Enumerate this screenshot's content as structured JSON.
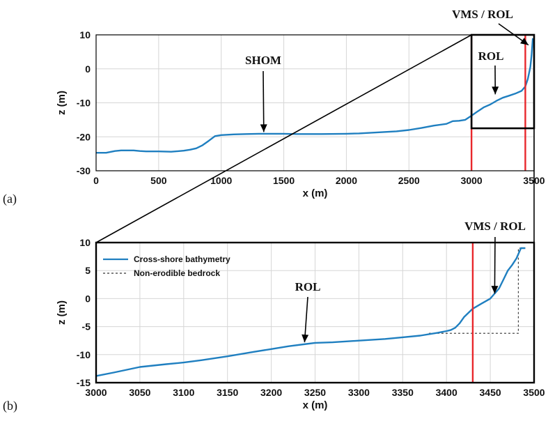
{
  "chart_data": [
    {
      "panel_label": "(a)",
      "type": "line",
      "xlabel": "x (m)",
      "ylabel": "z (m)",
      "xlim": [
        0,
        3500
      ],
      "ylim": [
        -30,
        10
      ],
      "xticks": [
        0,
        500,
        1000,
        1500,
        2000,
        2500,
        3000,
        3500
      ],
      "yticks": [
        -30,
        -20,
        -10,
        0,
        10
      ],
      "grid": true,
      "colors": {
        "series": "#1f7fc0",
        "markers": "#e8272b"
      },
      "series": [
        {
          "x": [
            0,
            80,
            150,
            200,
            300,
            350,
            400,
            500,
            600,
            700,
            750,
            800,
            850,
            900,
            950,
            1000,
            1100,
            1200,
            1300,
            1400,
            1500,
            1600,
            1800,
            2000,
            2100,
            2200,
            2300,
            2400,
            2500,
            2600,
            2700,
            2800,
            2850,
            2900,
            2950,
            3000,
            3050,
            3100,
            3150,
            3200,
            3250,
            3300,
            3350,
            3400,
            3430,
            3450,
            3470,
            3480,
            3490
          ],
          "y": [
            -24.7,
            -24.7,
            -24.2,
            -24.0,
            -24.0,
            -24.2,
            -24.3,
            -24.3,
            -24.4,
            -24.1,
            -23.8,
            -23.4,
            -22.5,
            -21.2,
            -19.8,
            -19.5,
            -19.3,
            -19.2,
            -19.1,
            -19.1,
            -19.1,
            -19.2,
            -19.2,
            -19.1,
            -19.0,
            -18.8,
            -18.6,
            -18.4,
            -18.0,
            -17.4,
            -16.7,
            -16.2,
            -15.4,
            -15.3,
            -15.0,
            -13.8,
            -12.5,
            -11.3,
            -10.5,
            -9.4,
            -8.5,
            -7.9,
            -7.3,
            -6.5,
            -5.2,
            -3.0,
            0.5,
            4.0,
            9.0
          ]
        }
      ],
      "vlines": [
        3000,
        3430
      ],
      "zoom_box": {
        "x": [
          3000,
          3500
        ],
        "y": [
          -17.5,
          10
        ]
      },
      "annotations": [
        {
          "text": "SHOM",
          "x": 1340,
          "y": -18.6
        },
        {
          "text": "ROL",
          "x": 3190,
          "y": -7.5
        },
        {
          "text": "VMS / ROL",
          "x": 3455,
          "y": 7.0
        }
      ]
    },
    {
      "panel_label": "(b)",
      "type": "line",
      "xlabel": "x (m)",
      "ylabel": "z (m)",
      "xlim": [
        3000,
        3500
      ],
      "ylim": [
        -15,
        10
      ],
      "xticks": [
        3000,
        3050,
        3100,
        3150,
        3200,
        3250,
        3300,
        3350,
        3400,
        3450,
        3500
      ],
      "yticks": [
        -15,
        -10,
        -5,
        0,
        5,
        10
      ],
      "grid": true,
      "legend_placement": "top-left",
      "colors": {
        "series": "#1f7fc0",
        "bedrock": "#333333",
        "markers": "#e8272b"
      },
      "series": [
        {
          "name": "Cross-shore bathymetry",
          "x": [
            3000,
            3020,
            3050,
            3080,
            3100,
            3120,
            3150,
            3180,
            3200,
            3220,
            3240,
            3250,
            3270,
            3300,
            3330,
            3350,
            3370,
            3390,
            3400,
            3405,
            3410,
            3415,
            3420,
            3430,
            3440,
            3450,
            3460,
            3465,
            3470,
            3475,
            3480,
            3485,
            3490
          ],
          "y": [
            -13.8,
            -13.2,
            -12.2,
            -11.7,
            -11.4,
            -11.0,
            -10.3,
            -9.5,
            -9.0,
            -8.5,
            -8.1,
            -7.9,
            -7.8,
            -7.5,
            -7.2,
            -6.9,
            -6.6,
            -6.1,
            -5.8,
            -5.6,
            -5.2,
            -4.4,
            -3.3,
            -1.8,
            -0.9,
            0.0,
            1.8,
            3.4,
            5.0,
            6.0,
            7.2,
            9.0,
            9.0
          ]
        },
        {
          "name": "Non-erodible bedrock",
          "x": [
            3380,
            3400,
            3420,
            3440,
            3460,
            3482,
            3482,
            3490
          ],
          "y": [
            -6.2,
            -6.2,
            -6.2,
            -6.2,
            -6.2,
            -6.2,
            9.0,
            9.0
          ]
        }
      ],
      "vlines": [
        3430
      ],
      "annotations": [
        {
          "text": "ROL",
          "x": 3238,
          "y": -7.8
        },
        {
          "text": "VMS / ROL",
          "x": 3455,
          "y": 0.9
        }
      ]
    }
  ]
}
